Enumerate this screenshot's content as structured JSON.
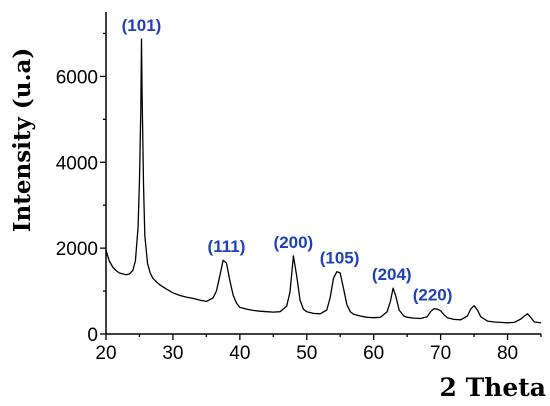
{
  "chart_data": {
    "type": "line",
    "title": "",
    "xlabel": "2 Theta",
    "ylabel": "Intensity (u.a)",
    "xlim": [
      20,
      85
    ],
    "ylim": [
      0,
      7500
    ],
    "x_ticks": [
      20,
      30,
      40,
      50,
      60,
      70,
      80
    ],
    "y_ticks": [
      0,
      2000,
      4000,
      6000
    ],
    "grid": false,
    "colors": {
      "line": "#000000",
      "annotation": "#1f3fbf",
      "axis": "#000000"
    },
    "annotations": [
      {
        "text": "(101)",
        "x": 25.3,
        "y": 6870
      },
      {
        "text": "(111)",
        "x": 38.0,
        "y": 1720
      },
      {
        "text": "(200)",
        "x": 48.0,
        "y": 1820
      },
      {
        "text": "(105)",
        "x": 54.9,
        "y": 1450
      },
      {
        "text": "(204)",
        "x": 62.7,
        "y": 1070
      },
      {
        "text": "(220)",
        "x": 68.8,
        "y": 590
      }
    ],
    "series": [
      {
        "x": [
          20,
          20.5,
          21,
          21.5,
          22,
          22.5,
          23,
          23.5,
          24,
          24.4,
          24.8,
          25.0,
          25.2,
          25.3,
          25.4,
          25.6,
          25.8,
          26.2,
          26.6,
          27,
          27.5,
          28,
          29,
          30,
          31,
          32,
          33,
          34,
          35,
          36,
          36.5,
          37,
          37.5,
          38,
          38.5,
          39,
          39.5,
          40,
          41,
          42,
          43,
          44,
          45,
          46,
          47,
          47.5,
          48,
          48.5,
          49,
          49.5,
          50,
          51,
          52,
          53,
          53.5,
          54,
          54.5,
          55,
          55.5,
          56,
          56.5,
          57,
          58,
          59,
          60,
          61,
          62,
          62.5,
          62.9,
          63.3,
          63.8,
          64.5,
          65,
          66,
          67,
          68,
          68.5,
          69,
          69.5,
          70,
          70.5,
          71,
          72,
          73,
          74,
          74.5,
          75,
          75.5,
          76,
          77,
          78,
          79,
          80,
          81,
          82,
          82.5,
          83,
          83.5,
          84,
          85
        ],
        "values": [
          1950,
          1700,
          1560,
          1480,
          1420,
          1400,
          1380,
          1400,
          1480,
          1700,
          2500,
          3600,
          5200,
          6870,
          5600,
          3500,
          2300,
          1650,
          1420,
          1300,
          1220,
          1150,
          1050,
          960,
          900,
          860,
          830,
          790,
          760,
          840,
          1000,
          1350,
          1720,
          1650,
          1250,
          900,
          720,
          620,
          580,
          550,
          530,
          520,
          510,
          520,
          650,
          980,
          1820,
          1350,
          780,
          580,
          520,
          480,
          470,
          560,
          850,
          1300,
          1450,
          1420,
          1050,
          680,
          520,
          460,
          420,
          390,
          380,
          390,
          520,
          760,
          1070,
          880,
          560,
          420,
          390,
          370,
          360,
          400,
          520,
          590,
          580,
          540,
          450,
          380,
          340,
          330,
          420,
          580,
          660,
          560,
          400,
          300,
          280,
          270,
          260,
          270,
          350,
          420,
          470,
          380,
          280,
          260
        ]
      }
    ]
  }
}
